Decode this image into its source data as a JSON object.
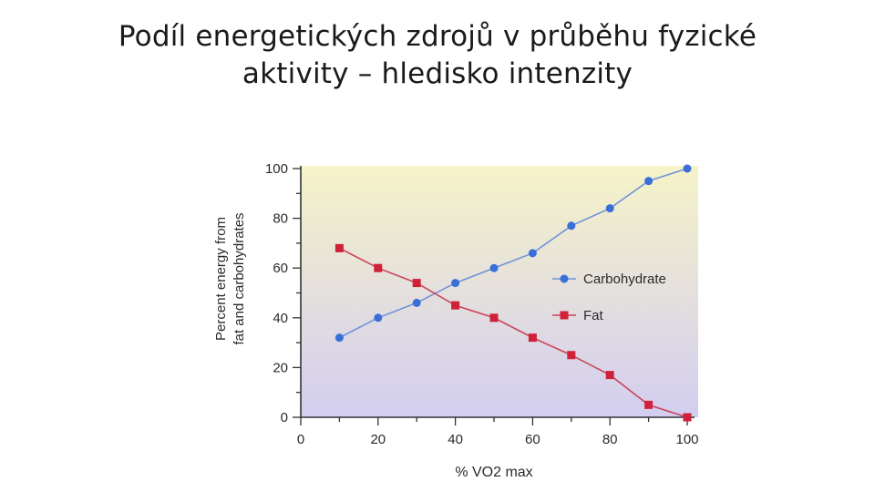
{
  "slide": {
    "title_line1": "Podíl energetických zdrojů v průběhu fyzické",
    "title_line2": "aktivity – hledisko intenzity"
  },
  "colors": {
    "carbohydrate": "#3a6fd8",
    "carbohydrate_line": "#6f93d9",
    "fat": "#d0213a",
    "fat_line": "#c9455a",
    "plot_bg_top": "#f6f3c9",
    "plot_bg_bottom": "#d3cdf0"
  },
  "chart_data": {
    "type": "line",
    "title": "",
    "xlabel": "% VO2 max",
    "ylabel_line1": "Percent energy from",
    "ylabel_line2": "fat and carbohydrates",
    "xlim": [
      0,
      100
    ],
    "ylim": [
      0,
      100
    ],
    "xticks": [
      "0",
      "20",
      "40",
      "60",
      "80",
      "100"
    ],
    "yticks": [
      "0",
      "20",
      "40",
      "60",
      "80",
      "100"
    ],
    "legend_position": "right",
    "x": [
      10,
      20,
      30,
      40,
      50,
      60,
      70,
      80,
      90,
      100
    ],
    "series": [
      {
        "name": "Carbohydrate",
        "marker": "circle",
        "values": [
          32,
          40,
          46,
          54,
          60,
          66,
          77,
          84,
          95,
          100
        ]
      },
      {
        "name": "Fat",
        "marker": "square",
        "values": [
          68,
          60,
          54,
          45,
          40,
          32,
          25,
          17,
          5,
          0
        ]
      }
    ]
  }
}
